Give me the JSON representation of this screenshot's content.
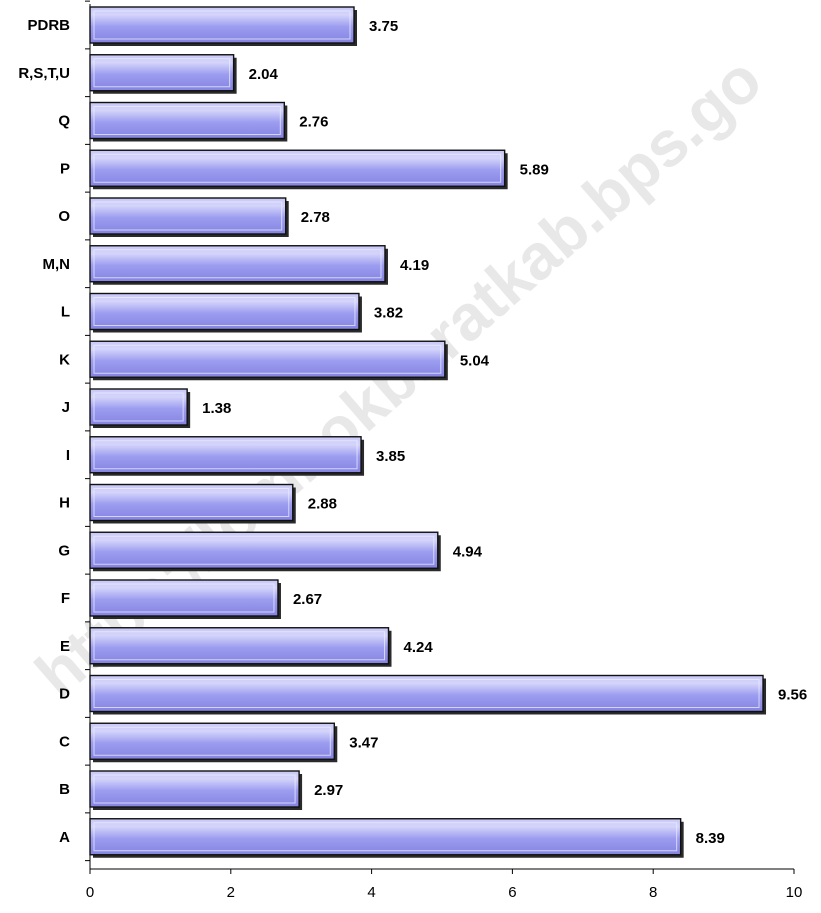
{
  "chart_data": {
    "type": "bar",
    "orientation": "horizontal",
    "categories": [
      "PDRB",
      "R,S,T,U",
      "Q",
      "P",
      "O",
      "M,N",
      "L",
      "K",
      "J",
      "I",
      "H",
      "G",
      "F",
      "E",
      "D",
      "C",
      "B",
      "A"
    ],
    "values": [
      3.75,
      2.04,
      2.76,
      5.89,
      2.78,
      4.19,
      3.82,
      5.04,
      1.38,
      3.85,
      2.88,
      4.94,
      2.67,
      4.24,
      9.56,
      3.47,
      2.97,
      8.39
    ],
    "value_labels": [
      "3.75",
      "2.04",
      "2.76",
      "5.89",
      "2.78",
      "4.19",
      "3.82",
      "5.04",
      "1.38",
      "3.85",
      "2.88",
      "4.94",
      "2.67",
      "4.24",
      "9.56",
      "3.47",
      "2.97",
      "8.39"
    ],
    "xlim": [
      0,
      10
    ],
    "xticks": [
      0,
      2,
      4,
      6,
      8,
      10
    ],
    "title": "",
    "xlabel": "",
    "ylabel": "",
    "grid": false,
    "legend": "none",
    "bar_color": "#9c9cf0",
    "bar_highlight": "#d4d4fb",
    "bar_edge": "#111111",
    "watermark": "https://lombokbaratkab.bps.go"
  }
}
